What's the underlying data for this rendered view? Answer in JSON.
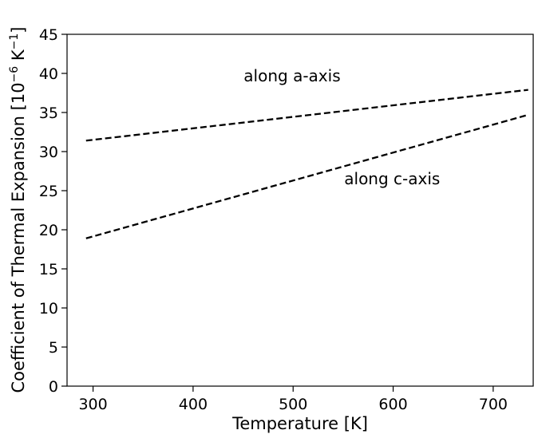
{
  "chart_data": {
    "type": "line",
    "xlabel": "Temperature [K]",
    "ylabel_main": "Coefficient of Thermal Expansion [10",
    "ylabel_exp1": "−6",
    "ylabel_mid": " K",
    "ylabel_exp2": "−1",
    "ylabel_end": "]",
    "xlim": [
      274,
      740
    ],
    "ylim": [
      0,
      45
    ],
    "xticks": [
      300,
      400,
      500,
      600,
      700
    ],
    "yticks": [
      0,
      5,
      10,
      15,
      20,
      25,
      30,
      35,
      40,
      45
    ],
    "grid": false,
    "legend": "none",
    "series": [
      {
        "x": [
          293,
          735
        ],
        "y": [
          31.4,
          37.9
        ],
        "line_style": "dashed",
        "color": "#000000"
      },
      {
        "x": [
          293,
          735
        ],
        "y": [
          18.9,
          34.7
        ],
        "line_style": "dashed",
        "color": "#000000"
      }
    ],
    "annotations": [
      {
        "text": "along a-axis",
        "x": 499,
        "y": 39.0
      },
      {
        "text": "along c-axis",
        "x": 599,
        "y": 25.8
      }
    ]
  }
}
